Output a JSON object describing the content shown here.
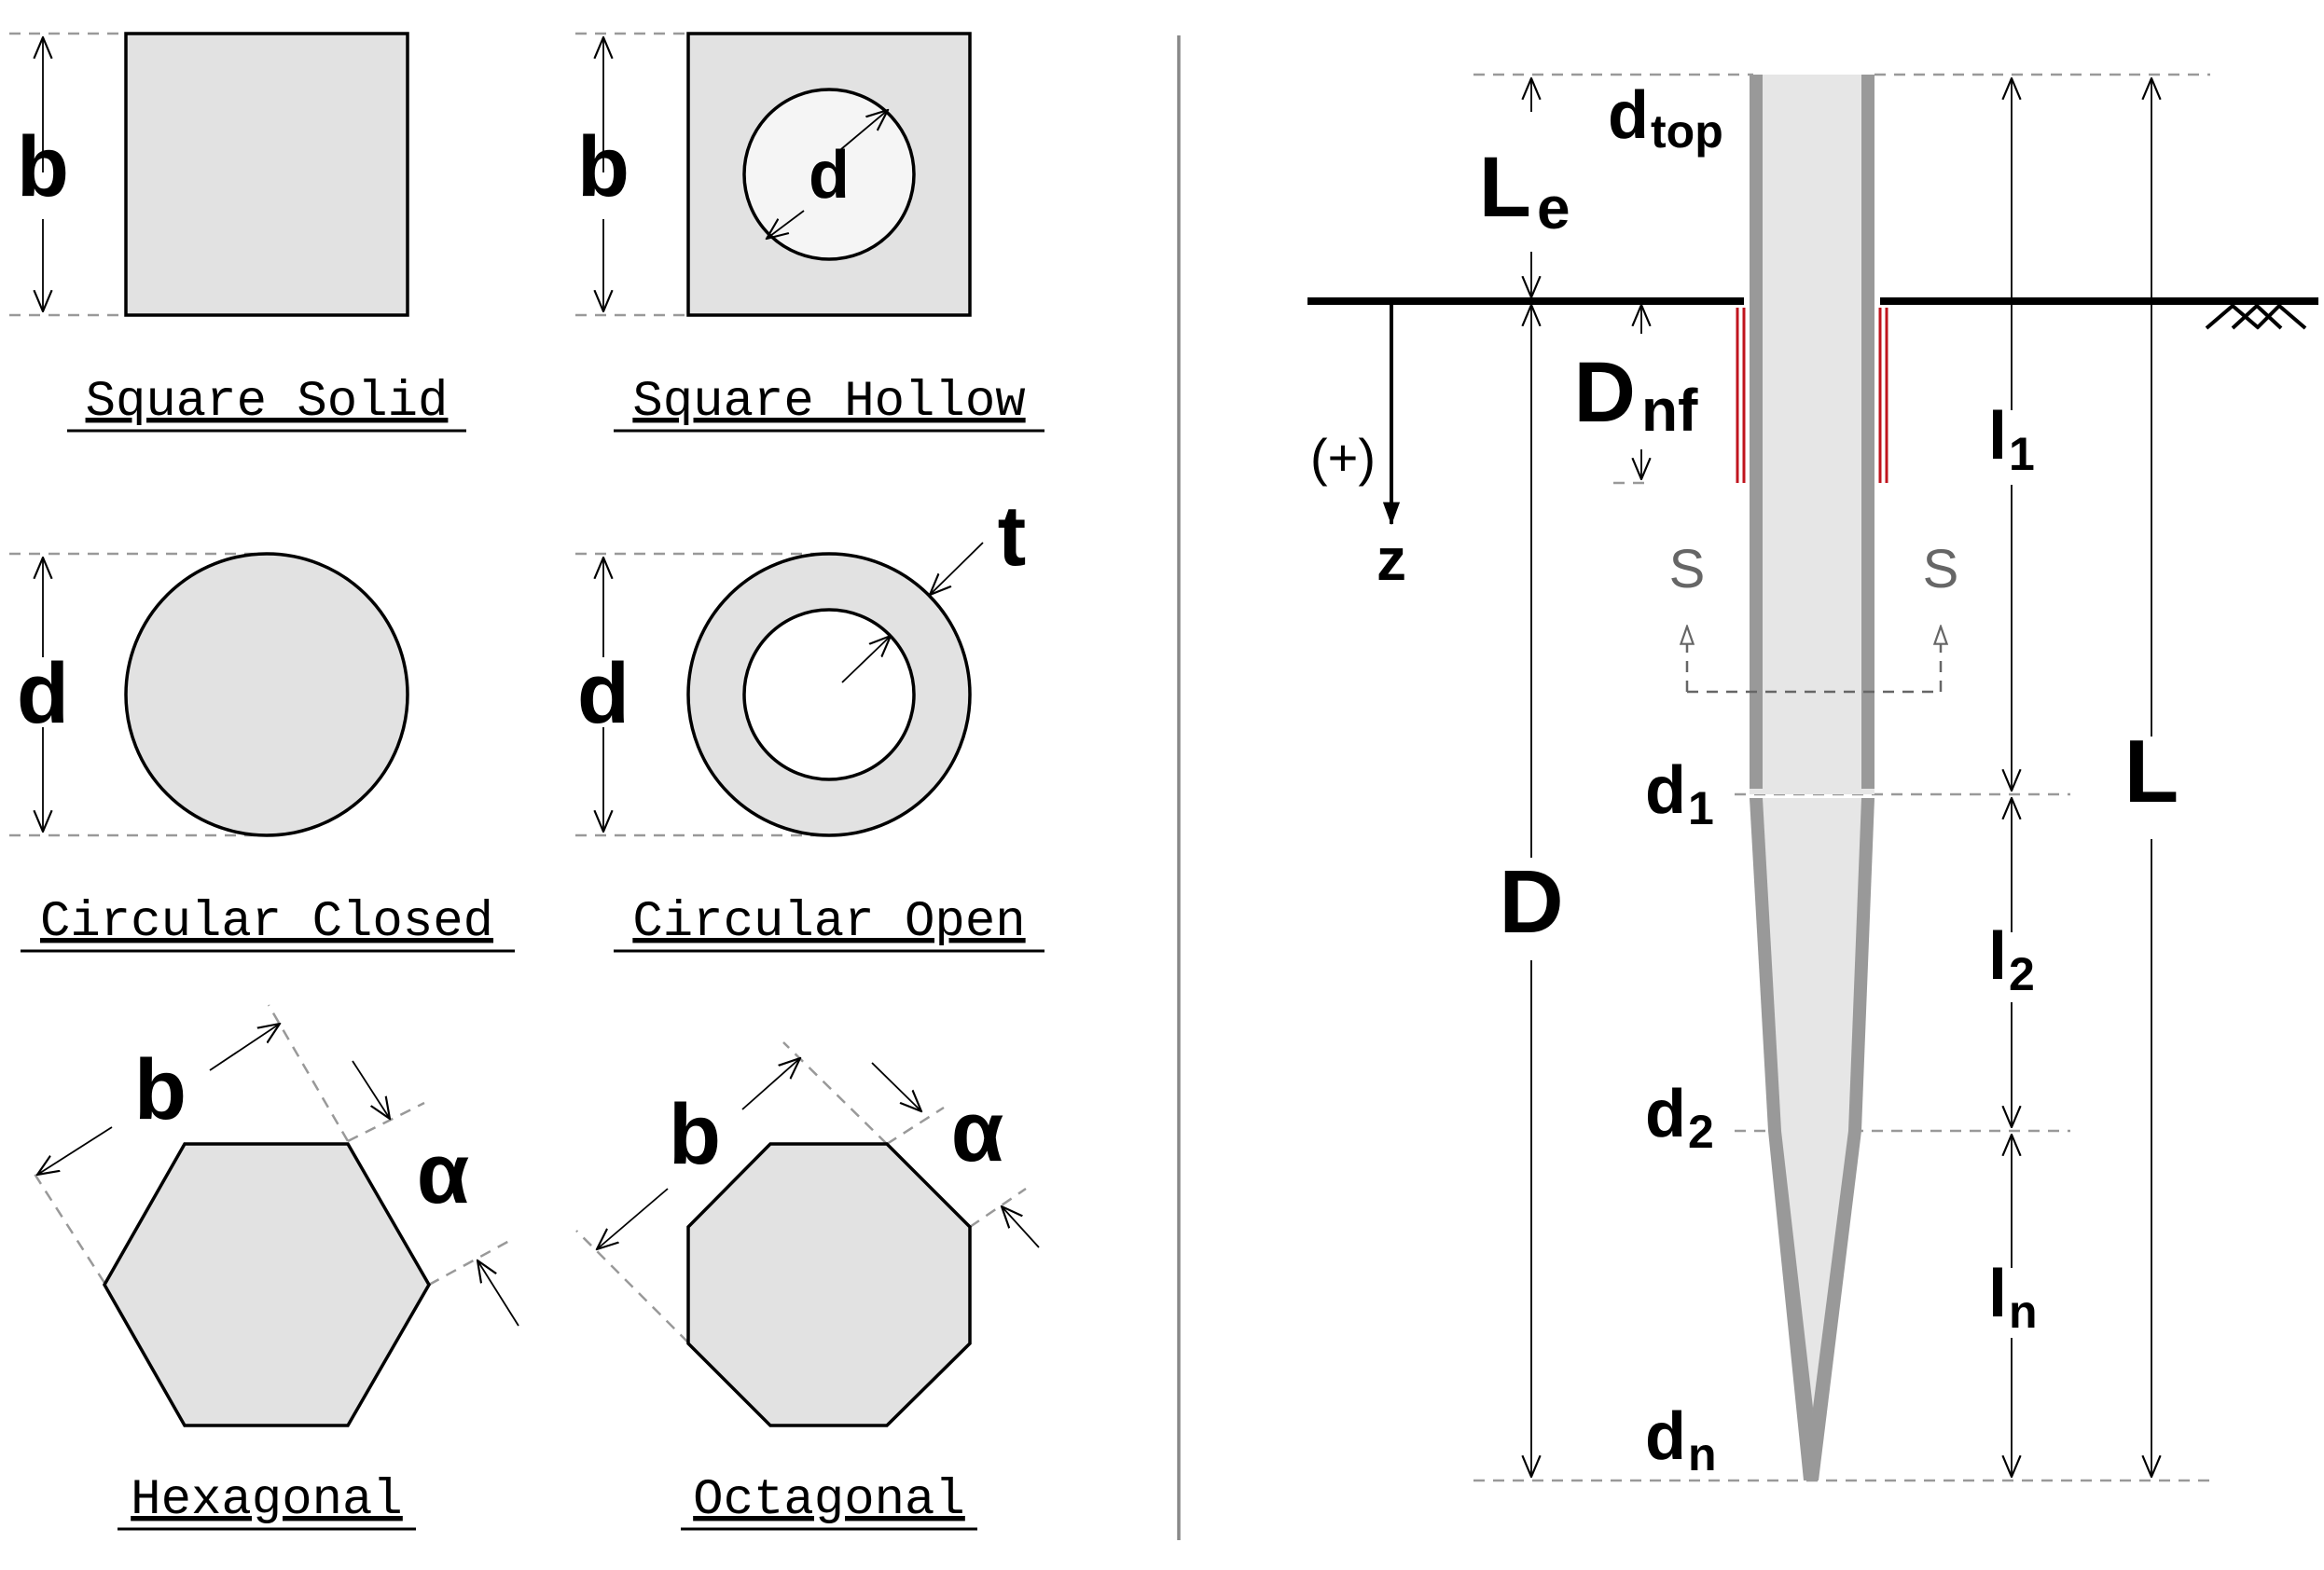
{
  "sections": [
    {
      "caption": "Square Solid",
      "symbols": [
        "b"
      ]
    },
    {
      "caption": "Square Hollow",
      "symbols": [
        "b",
        "d"
      ]
    },
    {
      "caption": "Circular Closed",
      "symbols": [
        "d"
      ]
    },
    {
      "caption": "Circular Open",
      "symbols": [
        "d",
        "t"
      ]
    },
    {
      "caption": "Hexagonal",
      "symbols": [
        "b",
        "α"
      ]
    },
    {
      "caption": "Octagonal",
      "symbols": [
        "b",
        "α"
      ]
    }
  ],
  "pile": {
    "d_top": {
      "main": "d",
      "sub": "top"
    },
    "Le": {
      "main": "L",
      "sub": "e"
    },
    "Dnf": {
      "main": "D",
      "sub": "nf"
    },
    "D": "D",
    "L": "L",
    "z_axis": {
      "sign": "(+)",
      "label": "z"
    },
    "section_mark": "S",
    "d1": {
      "main": "d",
      "sub": "1"
    },
    "d2": {
      "main": "d",
      "sub": "2"
    },
    "dn": {
      "main": "d",
      "sub": "n"
    },
    "l1": {
      "main": "l",
      "sub": "1"
    },
    "l2": {
      "main": "l",
      "sub": "2"
    },
    "ln": {
      "main": "l",
      "sub": "n"
    }
  },
  "colors": {
    "shape_fill": "#e2e2e2",
    "pile_wall": "#999999",
    "pile_fill": "#e6e6e6",
    "negative_friction": "#c0141e",
    "dashed_guides": "#999999"
  }
}
